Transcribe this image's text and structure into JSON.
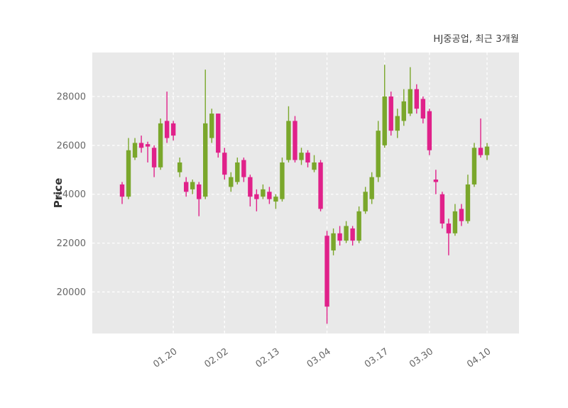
{
  "chart_data": {
    "type": "candlestick",
    "title": "HJ중공업, 최근 3개월",
    "ylabel": "Price",
    "y_ticks": [
      20000,
      22000,
      24000,
      26000,
      28000
    ],
    "ylim": [
      18300,
      29800
    ],
    "x_tick_indices": [
      8,
      16,
      24,
      32,
      41,
      48,
      57
    ],
    "x_tick_labels": [
      "01.20",
      "02.02",
      "02.13",
      "03.04",
      "03.17",
      "03.30",
      "04.10"
    ],
    "grid": true,
    "legend": "none",
    "colors": {
      "up": "#7aa72b",
      "down": "#e0218a",
      "plot_bg": "#e9e9e9",
      "grid": "#ffffff",
      "tick_label": "#666666",
      "title": "#3c3c3c",
      "ylabel": "#333333"
    },
    "candles_ohlc": [
      [
        24400,
        24500,
        23600,
        23900
      ],
      [
        23900,
        26300,
        23800,
        25800
      ],
      [
        25500,
        26300,
        25400,
        26100
      ],
      [
        26100,
        26400,
        25700,
        25900
      ],
      [
        26050,
        26150,
        25300,
        25950
      ],
      [
        25900,
        26000,
        24700,
        25100
      ],
      [
        25100,
        27100,
        25000,
        26900
      ],
      [
        27000,
        28200,
        26100,
        26300
      ],
      [
        26900,
        27000,
        26200,
        26400
      ],
      [
        24900,
        25500,
        24700,
        25300
      ],
      [
        24500,
        24700,
        23900,
        24100
      ],
      [
        24200,
        24600,
        24000,
        24500
      ],
      [
        24400,
        24500,
        23100,
        23800
      ],
      [
        23900,
        29100,
        23800,
        26900
      ],
      [
        26300,
        27500,
        26100,
        27300
      ],
      [
        27300,
        27300,
        25500,
        25700
      ],
      [
        25700,
        25900,
        24600,
        24800
      ],
      [
        24300,
        24900,
        24100,
        24700
      ],
      [
        24500,
        25500,
        24400,
        25300
      ],
      [
        25400,
        25500,
        24500,
        24700
      ],
      [
        24700,
        24800,
        23500,
        23900
      ],
      [
        24000,
        24200,
        23300,
        23800
      ],
      [
        23900,
        24400,
        23800,
        24200
      ],
      [
        24100,
        24300,
        23600,
        23800
      ],
      [
        23700,
        24000,
        23400,
        23900
      ],
      [
        23800,
        25500,
        23700,
        25300
      ],
      [
        25400,
        27600,
        25300,
        27000
      ],
      [
        27000,
        27200,
        25300,
        25400
      ],
      [
        25400,
        25900,
        25200,
        25700
      ],
      [
        25700,
        25800,
        25100,
        25300
      ],
      [
        25000,
        25600,
        24900,
        25300
      ],
      [
        25300,
        25400,
        23300,
        23400
      ],
      [
        22300,
        22500,
        18700,
        19400
      ],
      [
        21700,
        22600,
        21500,
        22400
      ],
      [
        22400,
        22700,
        21900,
        22100
      ],
      [
        22100,
        22900,
        22000,
        22700
      ],
      [
        22600,
        22700,
        21900,
        22100
      ],
      [
        22100,
        23500,
        22000,
        23300
      ],
      [
        23300,
        24300,
        23200,
        24100
      ],
      [
        23800,
        24900,
        23600,
        24700
      ],
      [
        24700,
        27000,
        24500,
        26600
      ],
      [
        26000,
        29300,
        25900,
        28000
      ],
      [
        28000,
        28200,
        26400,
        26600
      ],
      [
        26600,
        27500,
        26300,
        27200
      ],
      [
        27000,
        28300,
        26800,
        27800
      ],
      [
        27300,
        29200,
        27200,
        28300
      ],
      [
        28300,
        28500,
        27300,
        27500
      ],
      [
        27900,
        28000,
        26900,
        27100
      ],
      [
        27400,
        27500,
        25600,
        25800
      ],
      [
        24600,
        25000,
        24000,
        24500
      ],
      [
        24000,
        24100,
        22600,
        22800
      ],
      [
        22800,
        23000,
        21500,
        22400
      ],
      [
        22400,
        23600,
        22300,
        23300
      ],
      [
        23400,
        23600,
        22700,
        22900
      ],
      [
        22900,
        24800,
        22800,
        24400
      ],
      [
        24400,
        26100,
        24300,
        25900
      ],
      [
        25900,
        27100,
        25500,
        25600
      ],
      [
        25600,
        26100,
        25400,
        25950
      ]
    ]
  }
}
